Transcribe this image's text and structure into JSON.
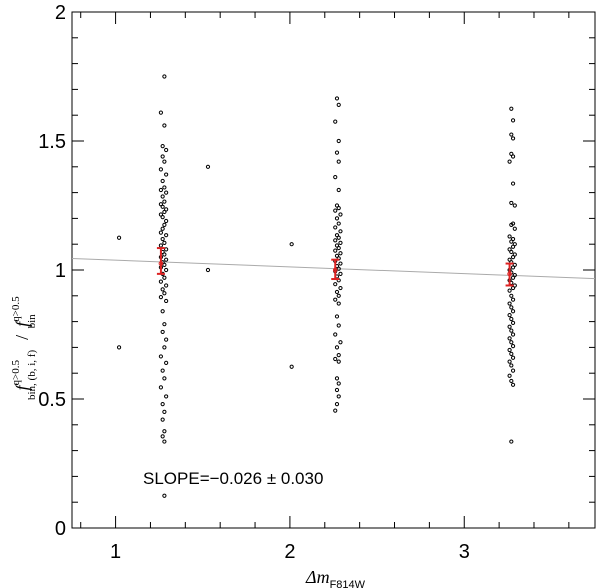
{
  "chart_data": {
    "type": "scatter",
    "title": "",
    "xlabel": {
      "main": "Δm",
      "sub": "F814W"
    },
    "ylabel": {
      "num_base": "f",
      "num_sup": "q>0.5",
      "num_sub": "bin, (b, i, f)",
      "slash": "/",
      "den_base": "f",
      "den_sup": "q>0.5",
      "den_sub": "bin"
    },
    "xlim": [
      0.75,
      3.75
    ],
    "ylim": [
      0,
      2
    ],
    "xticks": [
      1,
      2,
      3
    ],
    "xtick_labels": [
      "1",
      "2",
      "3"
    ],
    "yticks": [
      0,
      0.5,
      1,
      1.5,
      2
    ],
    "ytick_labels": [
      "0",
      "0.5",
      "1",
      "1.5",
      "2"
    ],
    "grid": false,
    "fit_line": {
      "slope": -0.026,
      "intercept": 1.064,
      "x_range": [
        0.75,
        3.75
      ],
      "color": "#aaaaaa"
    },
    "annotation": "SLOPE=−0.026 ± 0.030",
    "error_bars": [
      {
        "x": 1.26,
        "y": 1.025,
        "low": 0.985,
        "high": 1.085,
        "color": "#dd2222"
      },
      {
        "x": 2.26,
        "y": 1.0,
        "low": 0.965,
        "high": 1.04,
        "color": "#dd2222"
      },
      {
        "x": 3.26,
        "y": 0.985,
        "low": 0.94,
        "high": 1.025,
        "color": "#dd2222"
      }
    ],
    "series": [
      {
        "marker_color": "#000000",
        "points": [
          [
            1.02,
            1.125
          ],
          [
            1.02,
            0.7
          ],
          [
            1.53,
            1.4
          ],
          [
            1.53,
            1.0
          ],
          [
            2.01,
            1.1
          ],
          [
            2.01,
            0.625
          ],
          [
            1.28,
            1.75
          ],
          [
            1.26,
            1.61
          ],
          [
            1.28,
            1.56
          ],
          [
            1.27,
            1.48
          ],
          [
            1.29,
            1.465
          ],
          [
            1.27,
            1.44
          ],
          [
            1.28,
            1.42
          ],
          [
            1.26,
            1.39
          ],
          [
            1.29,
            1.37
          ],
          [
            1.27,
            1.345
          ],
          [
            1.28,
            1.32
          ],
          [
            1.26,
            1.31
          ],
          [
            1.29,
            1.3
          ],
          [
            1.27,
            1.285
          ],
          [
            1.28,
            1.265
          ],
          [
            1.26,
            1.255
          ],
          [
            1.27,
            1.245
          ],
          [
            1.29,
            1.235
          ],
          [
            1.28,
            1.225
          ],
          [
            1.26,
            1.215
          ],
          [
            1.27,
            1.205
          ],
          [
            1.29,
            1.19
          ],
          [
            1.28,
            1.175
          ],
          [
            1.27,
            1.16
          ],
          [
            1.26,
            1.145
          ],
          [
            1.29,
            1.135
          ],
          [
            1.27,
            1.12
          ],
          [
            1.28,
            1.105
          ],
          [
            1.26,
            1.095
          ],
          [
            1.29,
            1.08
          ],
          [
            1.27,
            1.07
          ],
          [
            1.28,
            1.06
          ],
          [
            1.26,
            1.05
          ],
          [
            1.29,
            1.04
          ],
          [
            1.27,
            1.03
          ],
          [
            1.28,
            1.02
          ],
          [
            1.26,
            1.01
          ],
          [
            1.29,
            1.0
          ],
          [
            1.27,
            0.985
          ],
          [
            1.28,
            0.97
          ],
          [
            1.26,
            0.955
          ],
          [
            1.29,
            0.94
          ],
          [
            1.27,
            0.925
          ],
          [
            1.28,
            0.91
          ],
          [
            1.26,
            0.895
          ],
          [
            1.29,
            0.88
          ],
          [
            1.27,
            0.84
          ],
          [
            1.28,
            0.79
          ],
          [
            1.27,
            0.76
          ],
          [
            1.29,
            0.73
          ],
          [
            1.28,
            0.7
          ],
          [
            1.26,
            0.665
          ],
          [
            1.29,
            0.64
          ],
          [
            1.27,
            0.61
          ],
          [
            1.28,
            0.58
          ],
          [
            1.26,
            0.545
          ],
          [
            1.29,
            0.51
          ],
          [
            1.27,
            0.48
          ],
          [
            1.28,
            0.45
          ],
          [
            1.27,
            0.42
          ],
          [
            1.28,
            0.375
          ],
          [
            1.27,
            0.355
          ],
          [
            1.28,
            0.335
          ],
          [
            1.28,
            0.125
          ],
          [
            2.27,
            1.665
          ],
          [
            2.28,
            1.64
          ],
          [
            2.26,
            1.575
          ],
          [
            2.28,
            1.5
          ],
          [
            2.27,
            1.455
          ],
          [
            2.28,
            1.42
          ],
          [
            2.26,
            1.36
          ],
          [
            2.28,
            1.31
          ],
          [
            2.27,
            1.25
          ],
          [
            2.28,
            1.24
          ],
          [
            2.26,
            1.23
          ],
          [
            2.29,
            1.215
          ],
          [
            2.27,
            1.2
          ],
          [
            2.28,
            1.18
          ],
          [
            2.26,
            1.165
          ],
          [
            2.29,
            1.15
          ],
          [
            2.27,
            1.135
          ],
          [
            2.28,
            1.125
          ],
          [
            2.26,
            1.115
          ],
          [
            2.29,
            1.105
          ],
          [
            2.27,
            1.095
          ],
          [
            2.28,
            1.085
          ],
          [
            2.26,
            1.075
          ],
          [
            2.29,
            1.065
          ],
          [
            2.27,
            1.055
          ],
          [
            2.28,
            1.045
          ],
          [
            2.26,
            1.035
          ],
          [
            2.29,
            1.025
          ],
          [
            2.27,
            1.015
          ],
          [
            2.28,
            1.005
          ],
          [
            2.26,
            0.995
          ],
          [
            2.29,
            0.985
          ],
          [
            2.27,
            0.975
          ],
          [
            2.28,
            0.96
          ],
          [
            2.26,
            0.945
          ],
          [
            2.29,
            0.93
          ],
          [
            2.27,
            0.915
          ],
          [
            2.28,
            0.9
          ],
          [
            2.26,
            0.885
          ],
          [
            2.28,
            0.87
          ],
          [
            2.27,
            0.82
          ],
          [
            2.28,
            0.785
          ],
          [
            2.26,
            0.75
          ],
          [
            2.29,
            0.72
          ],
          [
            2.27,
            0.7
          ],
          [
            2.28,
            0.67
          ],
          [
            2.26,
            0.655
          ],
          [
            2.28,
            0.645
          ],
          [
            2.27,
            0.58
          ],
          [
            2.28,
            0.56
          ],
          [
            2.27,
            0.535
          ],
          [
            2.28,
            0.51
          ],
          [
            2.27,
            0.48
          ],
          [
            2.26,
            0.455
          ],
          [
            3.27,
            1.625
          ],
          [
            3.28,
            1.58
          ],
          [
            3.27,
            1.525
          ],
          [
            3.28,
            1.51
          ],
          [
            3.27,
            1.45
          ],
          [
            3.28,
            1.44
          ],
          [
            3.26,
            1.42
          ],
          [
            3.28,
            1.335
          ],
          [
            3.27,
            1.26
          ],
          [
            3.29,
            1.25
          ],
          [
            3.28,
            1.18
          ],
          [
            3.27,
            1.175
          ],
          [
            3.29,
            1.16
          ],
          [
            3.26,
            1.13
          ],
          [
            3.28,
            1.12
          ],
          [
            3.27,
            1.11
          ],
          [
            3.29,
            1.1
          ],
          [
            3.28,
            1.09
          ],
          [
            3.26,
            1.08
          ],
          [
            3.27,
            1.07
          ],
          [
            3.29,
            1.06
          ],
          [
            3.28,
            1.05
          ],
          [
            3.26,
            1.04
          ],
          [
            3.27,
            1.03
          ],
          [
            3.29,
            1.02
          ],
          [
            3.28,
            1.01
          ],
          [
            3.26,
            1.0
          ],
          [
            3.27,
            0.99
          ],
          [
            3.29,
            0.98
          ],
          [
            3.28,
            0.97
          ],
          [
            3.26,
            0.96
          ],
          [
            3.27,
            0.95
          ],
          [
            3.29,
            0.94
          ],
          [
            3.28,
            0.93
          ],
          [
            3.26,
            0.92
          ],
          [
            3.27,
            0.9
          ],
          [
            3.28,
            0.885
          ],
          [
            3.26,
            0.87
          ],
          [
            3.27,
            0.855
          ],
          [
            3.28,
            0.84
          ],
          [
            3.26,
            0.825
          ],
          [
            3.27,
            0.81
          ],
          [
            3.28,
            0.795
          ],
          [
            3.26,
            0.78
          ],
          [
            3.27,
            0.765
          ],
          [
            3.28,
            0.75
          ],
          [
            3.26,
            0.735
          ],
          [
            3.27,
            0.72
          ],
          [
            3.28,
            0.705
          ],
          [
            3.26,
            0.69
          ],
          [
            3.27,
            0.675
          ],
          [
            3.28,
            0.66
          ],
          [
            3.26,
            0.645
          ],
          [
            3.27,
            0.63
          ],
          [
            3.28,
            0.61
          ],
          [
            3.26,
            0.59
          ],
          [
            3.27,
            0.57
          ],
          [
            3.28,
            0.555
          ],
          [
            3.27,
            0.335
          ]
        ]
      }
    ]
  }
}
